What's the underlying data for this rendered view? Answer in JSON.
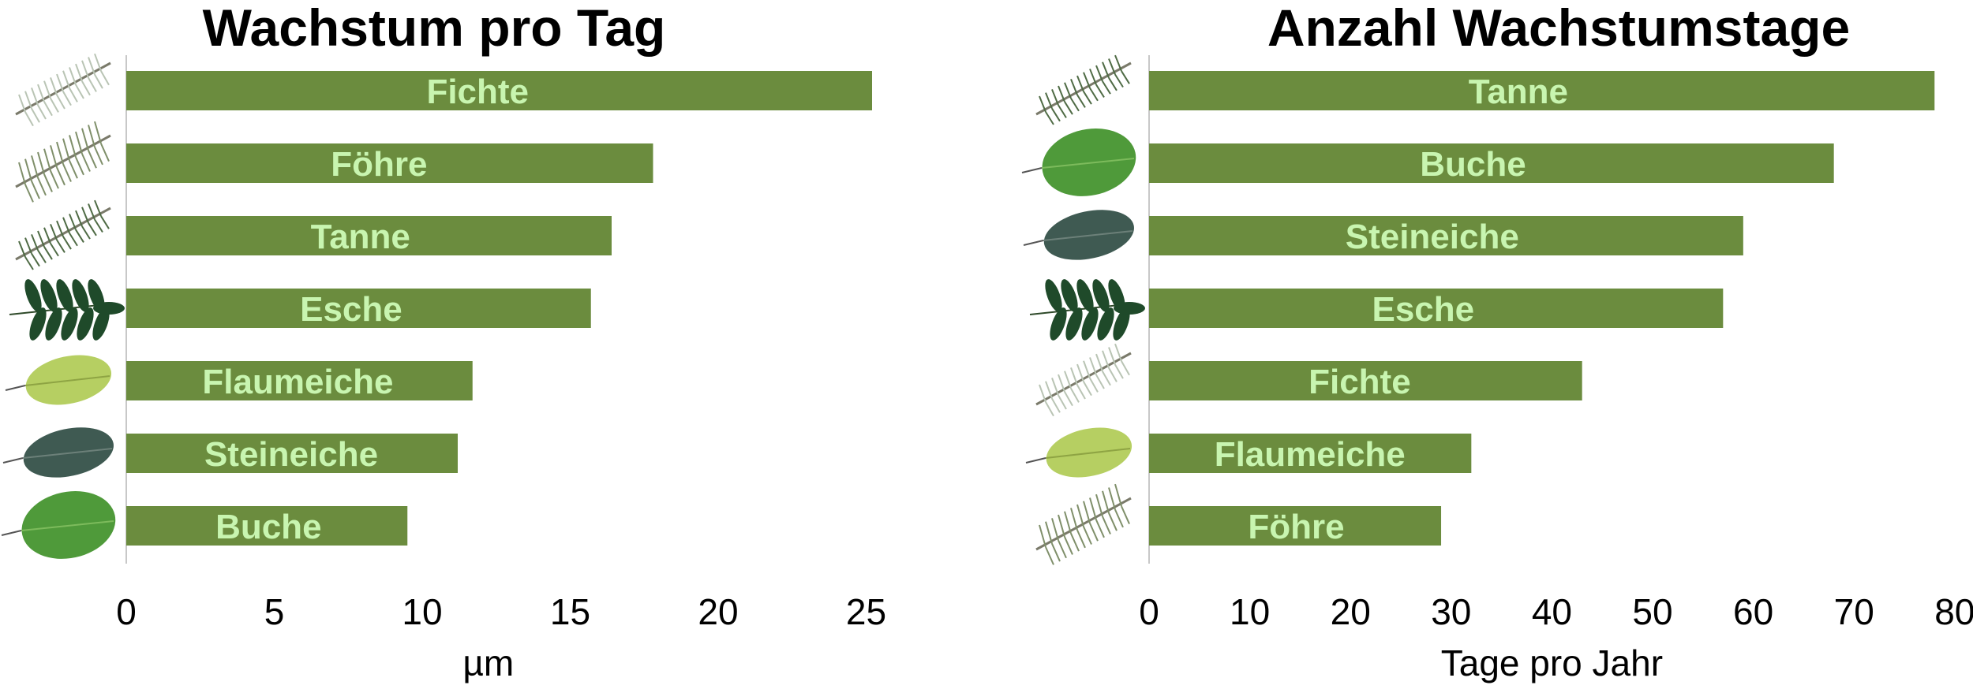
{
  "chart_data": [
    {
      "type": "bar",
      "orientation": "horizontal",
      "title": "Wachstum pro Tag",
      "xlabel": "µm",
      "categories": [
        "Fichte",
        "Föhre",
        "Tanne",
        "Esche",
        "Flaumeiche",
        "Steineiche",
        "Buche"
      ],
      "values": [
        25.2,
        17.8,
        16.4,
        15.7,
        11.7,
        11.2,
        9.5
      ],
      "xlim": [
        0,
        25
      ],
      "xticks": [
        "0",
        "5",
        "10",
        "15",
        "20",
        "25"
      ],
      "icons": [
        "spruce-branch-icon",
        "pine-branch-icon",
        "fir-branch-icon",
        "ash-leaf-icon",
        "downy-oak-leaf-icon",
        "holm-oak-leaf-icon",
        "beech-leaf-icon"
      ],
      "bar_color": "#6b8c3e",
      "label_color": "#c8f5b0",
      "grid": false
    },
    {
      "type": "bar",
      "orientation": "horizontal",
      "title": "Anzahl Wachstumstage",
      "xlabel": "Tage pro Jahr",
      "categories": [
        "Tanne",
        "Buche",
        "Steineiche",
        "Esche",
        "Fichte",
        "Flaumeiche",
        "Föhre"
      ],
      "values": [
        78,
        68,
        59,
        57,
        43,
        32,
        29
      ],
      "xlim": [
        0,
        80
      ],
      "xticks": [
        "0",
        "10",
        "20",
        "30",
        "40",
        "50",
        "60",
        "70",
        "80"
      ],
      "icons": [
        "fir-branch-icon",
        "beech-leaf-icon",
        "holm-oak-leaf-icon",
        "ash-leaf-icon",
        "spruce-branch-icon",
        "downy-oak-leaf-icon",
        "pine-branch-icon"
      ],
      "bar_color": "#6b8c3e",
      "label_color": "#c8f5b0",
      "grid": false
    }
  ]
}
